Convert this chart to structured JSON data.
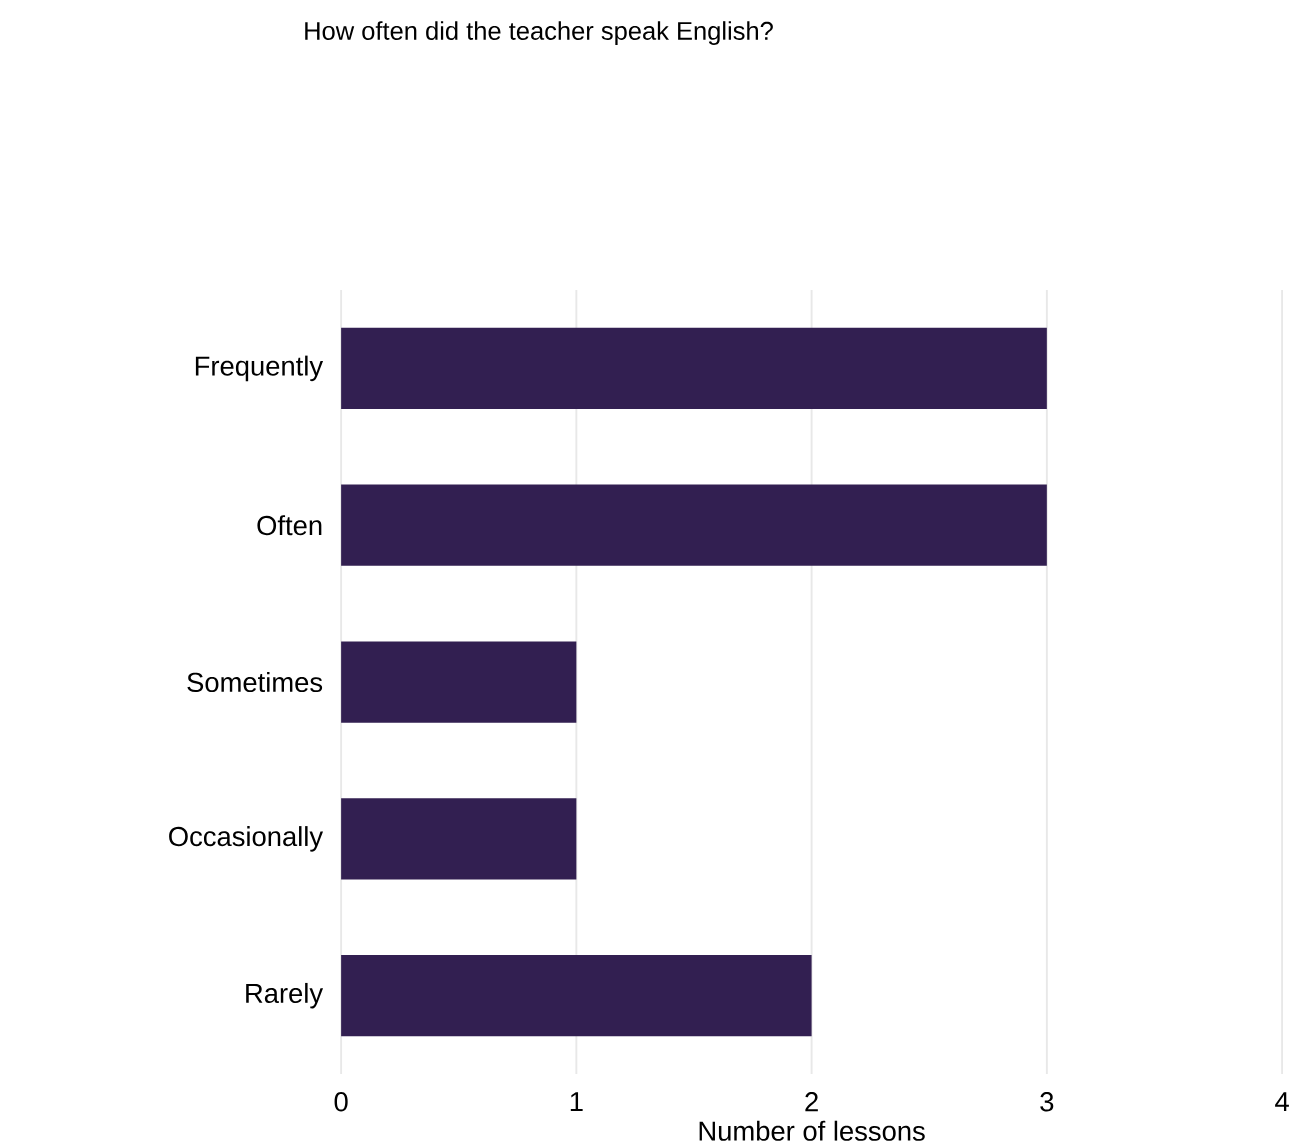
{
  "chart_data": {
    "type": "bar",
    "orientation": "horizontal",
    "title": "How often did the teacher speak English?",
    "xlabel": "Number of lessons",
    "categories": [
      "Frequently",
      "Often",
      "Sometimes",
      "Occasionally",
      "Rarely"
    ],
    "values": [
      3,
      3,
      1,
      1,
      2
    ],
    "color": "#321f51",
    "xlim": [
      0,
      4
    ],
    "xticks": [
      0,
      1,
      2,
      3,
      4
    ],
    "grid": "x"
  }
}
